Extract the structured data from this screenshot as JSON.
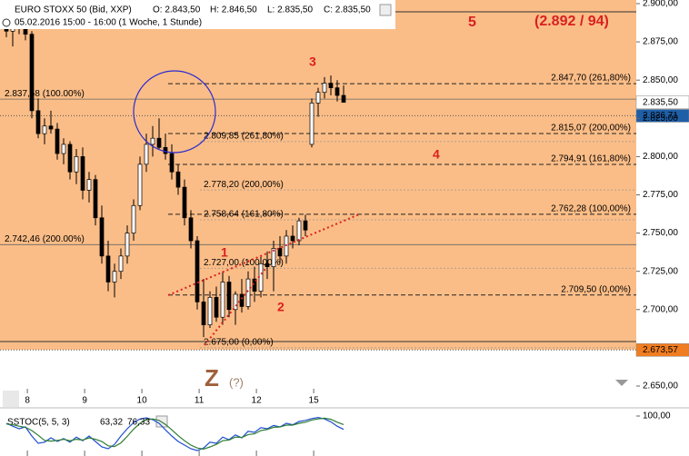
{
  "header": {
    "instrument": "EURO STOXX 50 (Bid, XXP)",
    "open": "O: 2.843,50",
    "high": "H: 2.846,50",
    "low": "L: 2.835,50",
    "close": "C: 2.835,50",
    "period": "05.02.2016 15:00 - 16:00 (1 Woche, 1 Stunde)"
  },
  "chart_data": [
    {
      "type": "candlestick",
      "x": [
        1,
        2,
        3,
        4,
        5,
        6,
        7,
        8,
        9,
        10,
        11,
        12,
        13,
        14,
        15,
        16,
        17,
        18,
        19,
        20,
        21,
        22,
        23,
        24,
        25,
        26,
        27,
        28,
        29,
        30,
        31,
        32,
        33,
        34,
        35,
        36,
        37,
        38,
        39,
        40,
        41,
        42,
        43,
        44,
        45,
        46,
        47,
        48,
        49,
        50,
        51,
        52,
        53,
        54
      ],
      "open": [
        2885,
        2882,
        2888,
        2884,
        2880,
        2830,
        2815,
        2820,
        2818,
        2802,
        2808,
        2790,
        2800,
        2778,
        2785,
        2760,
        2735,
        2718,
        2725,
        2735,
        2750,
        2768,
        2795,
        2808,
        2812,
        2806,
        2802,
        2790,
        2780,
        2760,
        2745,
        2705,
        2690,
        2708,
        2695,
        2718,
        2700,
        2710,
        2702,
        2720,
        2712,
        2730,
        2728,
        2740,
        2735,
        2748,
        2745,
        2758,
        2808,
        2835,
        2842,
        2848,
        2845,
        2840
      ],
      "high": [
        2893,
        2890,
        2895,
        2890,
        2882,
        2838,
        2825,
        2830,
        2822,
        2812,
        2810,
        2805,
        2806,
        2790,
        2788,
        2768,
        2745,
        2730,
        2740,
        2755,
        2772,
        2800,
        2815,
        2820,
        2825,
        2815,
        2808,
        2795,
        2785,
        2765,
        2748,
        2720,
        2712,
        2715,
        2725,
        2722,
        2712,
        2720,
        2725,
        2728,
        2735,
        2738,
        2745,
        2748,
        2752,
        2755,
        2760,
        2762,
        2838,
        2845,
        2852,
        2853,
        2850,
        2846.5
      ],
      "low": [
        2878,
        2872,
        2880,
        2876,
        2825,
        2812,
        2808,
        2815,
        2798,
        2795,
        2785,
        2782,
        2772,
        2770,
        2755,
        2730,
        2712,
        2708,
        2720,
        2730,
        2745,
        2765,
        2790,
        2800,
        2805,
        2798,
        2785,
        2775,
        2755,
        2740,
        2700,
        2682,
        2688,
        2692,
        2690,
        2695,
        2690,
        2698,
        2700,
        2705,
        2708,
        2720,
        2712,
        2730,
        2730,
        2740,
        2742,
        2748,
        2806,
        2826,
        2838,
        2840,
        2836,
        2835.5
      ],
      "close": [
        2882,
        2888,
        2884,
        2880,
        2830,
        2815,
        2820,
        2818,
        2802,
        2808,
        2790,
        2800,
        2778,
        2785,
        2760,
        2735,
        2718,
        2725,
        2735,
        2750,
        2768,
        2795,
        2808,
        2812,
        2806,
        2802,
        2790,
        2780,
        2760,
        2745,
        2705,
        2690,
        2708,
        2695,
        2718,
        2700,
        2710,
        2702,
        2720,
        2712,
        2730,
        2728,
        2740,
        2735,
        2748,
        2745,
        2758,
        2752,
        2835,
        2842,
        2848,
        2845,
        2840,
        2835.5
      ],
      "up_color": "#ffffff",
      "down_color": "#000000",
      "xlim": [
        0,
        100
      ],
      "xticks": [
        {
          "value": 4.3,
          "label": "8"
        },
        {
          "value": 13.3,
          "label": "9"
        },
        {
          "value": 22.3,
          "label": "10"
        },
        {
          "value": 31.3,
          "label": "11"
        },
        {
          "value": 40.3,
          "label": "12"
        },
        {
          "value": 49.3,
          "label": "15"
        }
      ],
      "ylim": [
        2650,
        2900
      ],
      "yticks": [
        {
          "value": 2900,
          "label": "2.900,00"
        },
        {
          "value": 2875,
          "label": "2.875,00"
        },
        {
          "value": 2850,
          "label": "2.850,00"
        },
        {
          "value": 2825,
          "label": "2.825,00"
        },
        {
          "value": 2800,
          "label": "2.800,00"
        },
        {
          "value": 2775,
          "label": "2.775,00"
        },
        {
          "value": 2750,
          "label": "2.750,00"
        },
        {
          "value": 2725,
          "label": "2.725,00"
        },
        {
          "value": 2700,
          "label": "2.700,00"
        },
        {
          "value": 2650,
          "label": "2.650,00"
        }
      ],
      "levels": [
        {
          "value": 2847.7,
          "label": "2.847,70 (261,80%)",
          "style": "dash"
        },
        {
          "value": 2815.07,
          "label": "2.815,07 (200,00%)",
          "style": "dash"
        },
        {
          "value": 2794.91,
          "label": "2.794,91 (161,80%)",
          "style": "dash"
        },
        {
          "value": 2762.28,
          "label": "2.762,28 (100,00%)",
          "style": "dash"
        },
        {
          "value": 2709.5,
          "label": "2.709,50 (0,00%)",
          "style": "dash"
        },
        {
          "value": 2809.85,
          "label": "2.809,85 (261,80%)",
          "style": "dot"
        },
        {
          "value": 2778.2,
          "label": "2.778,20 (200,00%)",
          "style": "dot"
        },
        {
          "value": 2758.64,
          "label": "2.758,64 (161,80%)",
          "style": "dot"
        },
        {
          "value": 2727.0,
          "label": "2.727,00 (100,00%)",
          "style": "dot"
        },
        {
          "value": 2675.0,
          "label": "2.675,00 (0,00%)",
          "style": "dot"
        },
        {
          "value": 2837.58,
          "label": "2.837,58 (100.00%)",
          "style": "solid"
        },
        {
          "value": 2742.46,
          "label": "2.742,46 (200.00%)",
          "style": "solid"
        }
      ],
      "markers": [
        {
          "value": 2835.5,
          "label": "2.835,50",
          "color": "#ffffff"
        },
        {
          "value": 2826.71,
          "label": "2.826,71",
          "color": "#1f5fa8"
        },
        {
          "value": 2673.57,
          "label": "2.673,57",
          "color": "#f07d21"
        }
      ],
      "annotations": [
        "5",
        "(2.892 / 94)",
        "3",
        "4",
        "1",
        "2",
        "Z",
        "(?)"
      ]
    },
    {
      "type": "line",
      "title": "SSTOC(5, 5, 3)",
      "series": [
        {
          "color": "#1f4fd0",
          "last_label": "63,32",
          "values": [
            80,
            72,
            65,
            70,
            45,
            25,
            28,
            40,
            30,
            38,
            28,
            42,
            32,
            45,
            30,
            15,
            10,
            22,
            45,
            65,
            82,
            92,
            95,
            90,
            80,
            62,
            45,
            30,
            20,
            10,
            5,
            12,
            28,
            25,
            42,
            35,
            48,
            40,
            58,
            55,
            68,
            65,
            74,
            70,
            80,
            76,
            85,
            88,
            93,
            96,
            92,
            84,
            72,
            63.32
          ]
        },
        {
          "color": "#2e7d32",
          "last_label": "76,33",
          "values": [
            78,
            76,
            72,
            69,
            60,
            47,
            33,
            31,
            33,
            36,
            32,
            36,
            34,
            40,
            36,
            30,
            18,
            16,
            26,
            44,
            64,
            80,
            90,
            92,
            88,
            77,
            62,
            46,
            32,
            20,
            12,
            9,
            15,
            22,
            32,
            34,
            42,
            41,
            49,
            51,
            60,
            63,
            69,
            70,
            75,
            75,
            80,
            83,
            89,
            92,
            94,
            91,
            83,
            76.33
          ]
        }
      ],
      "ylim": [
        0,
        100
      ],
      "yticks": [
        {
          "value": 100,
          "label": "100,00"
        }
      ]
    }
  ]
}
